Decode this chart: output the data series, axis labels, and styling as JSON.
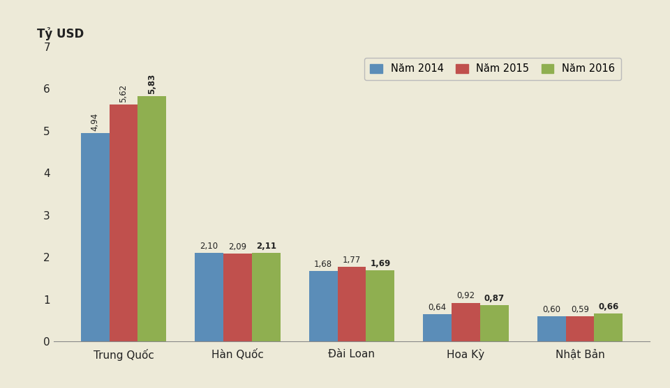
{
  "categories": [
    "Trung Quốc",
    "Hàn Quốc",
    "Đài Loan",
    "Hoa Kỳ",
    "Nhật Bản"
  ],
  "series": [
    {
      "label": "Năm 2014",
      "color": "#5B8DB8",
      "values": [
        4.94,
        2.1,
        1.68,
        0.64,
        0.6
      ]
    },
    {
      "label": "Năm 2015",
      "color": "#C0504D",
      "values": [
        5.62,
        2.09,
        1.77,
        0.92,
        0.59
      ]
    },
    {
      "label": "Năm 2016",
      "color": "#8FAF50",
      "values": [
        5.83,
        2.11,
        1.69,
        0.87,
        0.66
      ]
    }
  ],
  "top_label": "Tỷ USD",
  "ylim": [
    0,
    7
  ],
  "yticks": [
    0,
    1,
    2,
    3,
    4,
    5,
    6,
    7
  ],
  "background_color": "#EDEAD8",
  "bar_width": 0.25,
  "label_fontsize": 8.5,
  "axis_ticklabel_fontsize": 11,
  "xtick_fontsize": 11,
  "legend_fontsize": 10.5,
  "value_label_bold_index": 2,
  "rotate_labels_cat_index": 0
}
